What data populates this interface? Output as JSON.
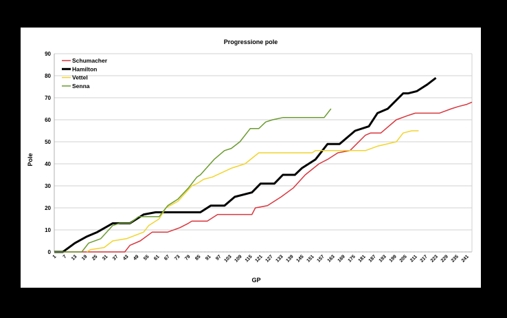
{
  "chart_data": {
    "type": "line",
    "title": "Progressione pole",
    "xlabel": "GP",
    "ylabel": "Pole",
    "xlim": [
      1,
      244
    ],
    "ylim": [
      0,
      90
    ],
    "yticks": [
      0,
      10,
      20,
      30,
      40,
      50,
      60,
      70,
      80,
      90
    ],
    "xticks": [
      1,
      7,
      13,
      19,
      25,
      31,
      37,
      43,
      49,
      55,
      61,
      67,
      73,
      79,
      85,
      91,
      97,
      103,
      109,
      115,
      121,
      127,
      133,
      139,
      145,
      151,
      157,
      163,
      169,
      175,
      181,
      187,
      193,
      199,
      205,
      211,
      217,
      223,
      229,
      235,
      241
    ],
    "grid": true,
    "legend": "top-left",
    "series": [
      {
        "name": "Schumacher",
        "color": "#d9363e",
        "width": 1.5,
        "points": [
          [
            1,
            0
          ],
          [
            42,
            0
          ],
          [
            45,
            3
          ],
          [
            51,
            5
          ],
          [
            58,
            9
          ],
          [
            67,
            9
          ],
          [
            74,
            11
          ],
          [
            79,
            13
          ],
          [
            81,
            14
          ],
          [
            90,
            14
          ],
          [
            96,
            17
          ],
          [
            116,
            17
          ],
          [
            118,
            20
          ],
          [
            125,
            21
          ],
          [
            129,
            23
          ],
          [
            133,
            25
          ],
          [
            140,
            29
          ],
          [
            147,
            35
          ],
          [
            155,
            40
          ],
          [
            160,
            42
          ],
          [
            166,
            45
          ],
          [
            173,
            46
          ],
          [
            182,
            53
          ],
          [
            185,
            54
          ],
          [
            191,
            54
          ],
          [
            200,
            60
          ],
          [
            207,
            62
          ],
          [
            211,
            63
          ],
          [
            225,
            63
          ],
          [
            232,
            65
          ],
          [
            236,
            66
          ],
          [
            241,
            67
          ],
          [
            244,
            68
          ]
        ]
      },
      {
        "name": "Hamilton",
        "color": "#000000",
        "width": 3,
        "points": [
          [
            1,
            0
          ],
          [
            6,
            0
          ],
          [
            13,
            4
          ],
          [
            20,
            7
          ],
          [
            26,
            9
          ],
          [
            35,
            13
          ],
          [
            45,
            13
          ],
          [
            53,
            17
          ],
          [
            60,
            18
          ],
          [
            86,
            18
          ],
          [
            92,
            21
          ],
          [
            100,
            21
          ],
          [
            106,
            25
          ],
          [
            116,
            27
          ],
          [
            121,
            31
          ],
          [
            129,
            31
          ],
          [
            134,
            35
          ],
          [
            141,
            35
          ],
          [
            145,
            38
          ],
          [
            153,
            42
          ],
          [
            160,
            49
          ],
          [
            167,
            49
          ],
          [
            176,
            55
          ],
          [
            184,
            57
          ],
          [
            189,
            63
          ],
          [
            195,
            65
          ],
          [
            204,
            72
          ],
          [
            207,
            72
          ],
          [
            212,
            73
          ],
          [
            218,
            76
          ],
          [
            223,
            79
          ]
        ]
      },
      {
        "name": "Vettel",
        "color": "#f2d42b",
        "width": 1.5,
        "points": [
          [
            20,
            0
          ],
          [
            22,
            1
          ],
          [
            30,
            2
          ],
          [
            35,
            5
          ],
          [
            43,
            6
          ],
          [
            53,
            9
          ],
          [
            56,
            12
          ],
          [
            62,
            15
          ],
          [
            66,
            20
          ],
          [
            73,
            23
          ],
          [
            81,
            30
          ],
          [
            84,
            31
          ],
          [
            88,
            33
          ],
          [
            93,
            34
          ],
          [
            104,
            38
          ],
          [
            112,
            40
          ],
          [
            120,
            45
          ],
          [
            151,
            45
          ],
          [
            153,
            46
          ],
          [
            182,
            46
          ],
          [
            189,
            48
          ],
          [
            200,
            50
          ],
          [
            204,
            54
          ],
          [
            209,
            55
          ],
          [
            213,
            55
          ]
        ]
      },
      {
        "name": "Senna",
        "color": "#6a9b2e",
        "width": 1.5,
        "points": [
          [
            1,
            0
          ],
          [
            17,
            0
          ],
          [
            21,
            4
          ],
          [
            28,
            6
          ],
          [
            35,
            12
          ],
          [
            39,
            13
          ],
          [
            45,
            13
          ],
          [
            50,
            16
          ],
          [
            62,
            16
          ],
          [
            67,
            21
          ],
          [
            73,
            24
          ],
          [
            79,
            29
          ],
          [
            84,
            34
          ],
          [
            86,
            35
          ],
          [
            94,
            42
          ],
          [
            100,
            46
          ],
          [
            104,
            47
          ],
          [
            109,
            50
          ],
          [
            115,
            56
          ],
          [
            120,
            56
          ],
          [
            124,
            59
          ],
          [
            128,
            60
          ],
          [
            134,
            61
          ],
          [
            158,
            61
          ],
          [
            162,
            65
          ]
        ]
      }
    ]
  }
}
